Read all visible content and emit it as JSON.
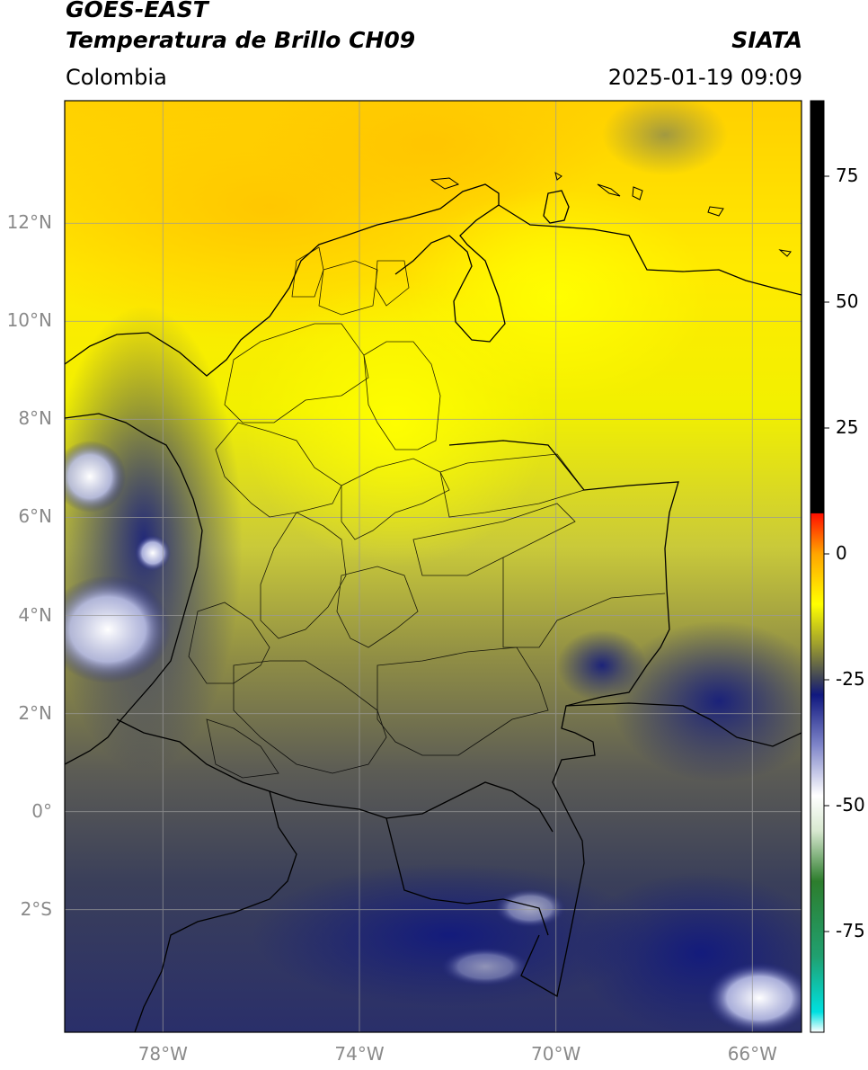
{
  "header": {
    "satellite": "GOES-EAST",
    "product": "Temperatura de Brillo CH09",
    "region": "Colombia",
    "agency": "SIATA",
    "datetime": "2025-01-19 09:09"
  },
  "map": {
    "lon_range": [
      -80,
      -65
    ],
    "lat_range": [
      -4.5,
      14.5
    ],
    "lat_ticks": [
      {
        "value": 12,
        "label": "12°N"
      },
      {
        "value": 10,
        "label": "10°N"
      },
      {
        "value": 8,
        "label": "8°N"
      },
      {
        "value": 6,
        "label": "6°N"
      },
      {
        "value": 4,
        "label": "4°N"
      },
      {
        "value": 2,
        "label": "2°N"
      },
      {
        "value": 0,
        "label": "0°"
      },
      {
        "value": -2,
        "label": "2°S"
      }
    ],
    "lon_ticks": [
      {
        "value": -78,
        "label": "78°W"
      },
      {
        "value": -74,
        "label": "74°W"
      },
      {
        "value": -70,
        "label": "70°W"
      },
      {
        "value": -66,
        "label": "66°W"
      }
    ],
    "grid": true,
    "colors": {
      "warm": "#ffd400",
      "mid": "#b7b72a",
      "cool": "#3a3f5a",
      "cold": "#1a1f80",
      "coast": "#000000",
      "grid": "#9a9a9a"
    }
  },
  "colorbar": {
    "range": [
      -95,
      90
    ],
    "ticks": [
      {
        "value": 75,
        "label": "75"
      },
      {
        "value": 50,
        "label": "50"
      },
      {
        "value": 25,
        "label": "25"
      },
      {
        "value": 0,
        "label": "0"
      },
      {
        "value": -25,
        "label": "-25"
      },
      {
        "value": -50,
        "label": "-50"
      },
      {
        "value": -75,
        "label": "-75"
      }
    ],
    "stops": [
      {
        "value": -95,
        "color": "#ffffff"
      },
      {
        "value": -91,
        "color": "#00e0e0"
      },
      {
        "value": -80,
        "color": "#20a070"
      },
      {
        "value": -65,
        "color": "#2d7d2d"
      },
      {
        "value": -55,
        "color": "#d8e8d0"
      },
      {
        "value": -48,
        "color": "#ffffff"
      },
      {
        "value": -38,
        "color": "#7f85c9"
      },
      {
        "value": -28,
        "color": "#10187f"
      },
      {
        "value": -25,
        "color": "#3a3f5a"
      },
      {
        "value": -18,
        "color": "#9e9e2e"
      },
      {
        "value": -10,
        "color": "#ffff00"
      },
      {
        "value": 0,
        "color": "#ffa500"
      },
      {
        "value": 8,
        "color": "#ff1000"
      },
      {
        "value": 8.1,
        "color": "#000000"
      },
      {
        "value": 90,
        "color": "#000000"
      }
    ]
  }
}
